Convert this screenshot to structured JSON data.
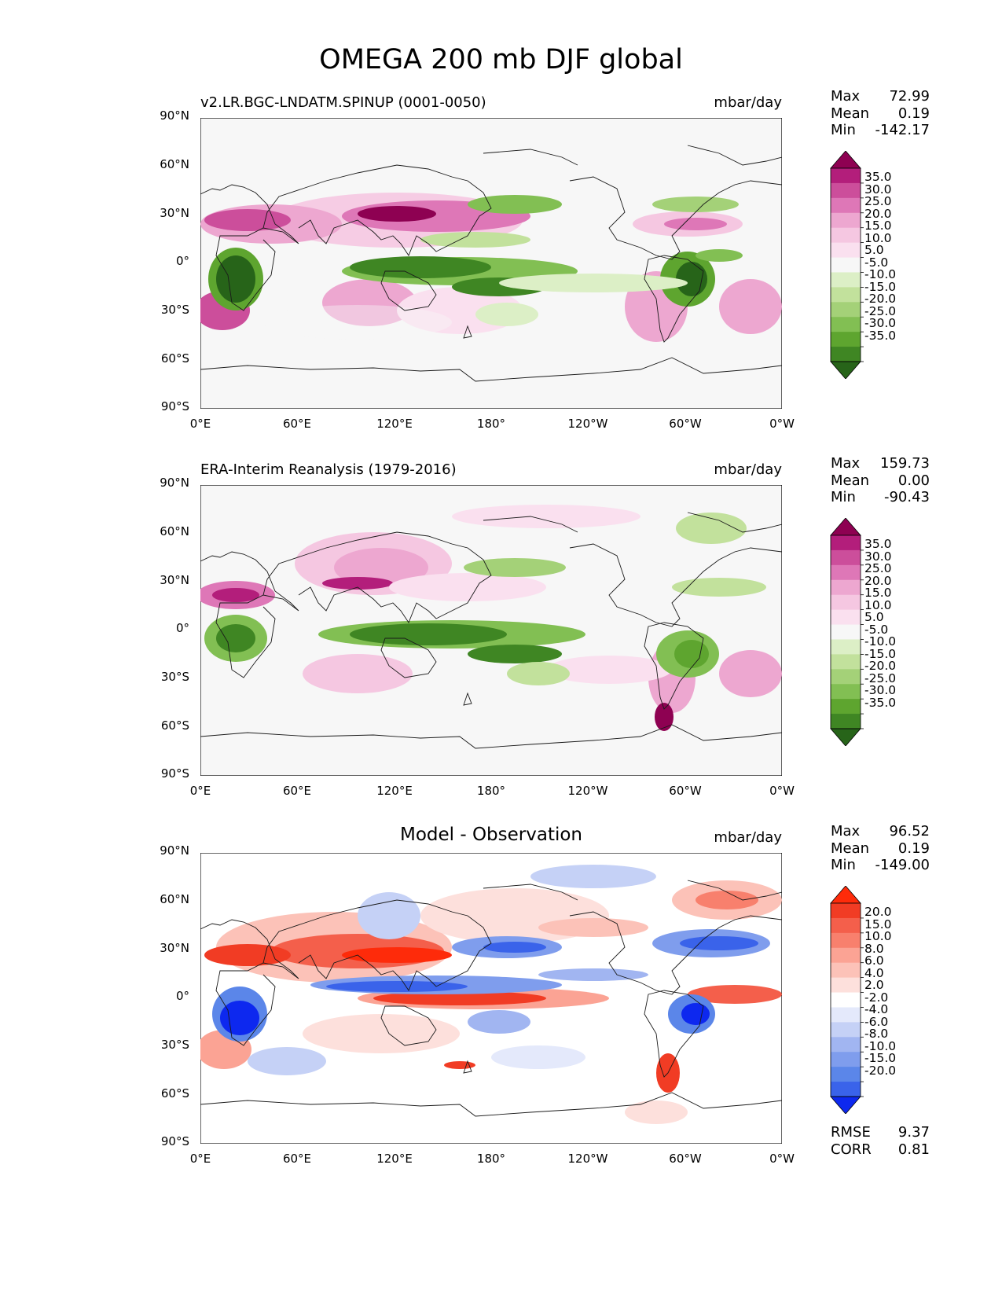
{
  "figure": {
    "title": "OMEGA 200 mb DJF global"
  },
  "axes": {
    "lat_ticks": [
      "90°N",
      "60°N",
      "30°N",
      "0°",
      "30°S",
      "60°S",
      "90°S"
    ],
    "lon_ticks": [
      "0°E",
      "60°E",
      "120°E",
      "180°",
      "120°W",
      "60°W",
      "0°W"
    ]
  },
  "colors": {
    "prgn": [
      "#276419",
      "#3f8623",
      "#5ea52f",
      "#82bf53",
      "#a4d178",
      "#c2e19c",
      "#dcefc6",
      "#f7f7f7",
      "#fae0ef",
      "#f5c7e1",
      "#eda7d0",
      "#de77b7",
      "#cc4e9b",
      "#b31e7b",
      "#8e0152"
    ],
    "diff": [
      "#0d28ef",
      "#3a63ea",
      "#5b86e9",
      "#7f9ded",
      "#a1b5f1",
      "#c5d1f6",
      "#e4e9fb",
      "#ffffff",
      "#fde0dc",
      "#fcc2b8",
      "#fba394",
      "#f8806d",
      "#f45f4b",
      "#f13c24",
      "#fe2b0a"
    ],
    "coast": "#1a1a1a"
  },
  "panels": [
    {
      "id": "test",
      "title": "v2.LR.BGC-LNDATM.SPINUP (0001-0050)",
      "units": "mbar/day",
      "stats": {
        "max_label": "Max",
        "max": "72.99",
        "mean_label": "Mean",
        "mean": "0.19",
        "min_label": "Min",
        "min": "-142.17"
      },
      "colorbar_labels": [
        "35.0",
        "30.0",
        "25.0",
        "20.0",
        "15.0",
        "10.0",
        "5.0",
        "-5.0",
        "-10.0",
        "-15.0",
        "-20.0",
        "-25.0",
        "-30.0",
        "-35.0"
      ]
    },
    {
      "id": "ref",
      "title": "ERA-Interim Reanalysis (1979-2016)",
      "units": "mbar/day",
      "stats": {
        "max_label": "Max",
        "max": "159.73",
        "mean_label": "Mean",
        "mean": "0.00",
        "min_label": "Min",
        "min": "-90.43"
      },
      "colorbar_labels": [
        "35.0",
        "30.0",
        "25.0",
        "20.0",
        "15.0",
        "10.0",
        "5.0",
        "-5.0",
        "-10.0",
        "-15.0",
        "-20.0",
        "-25.0",
        "-30.0",
        "-35.0"
      ]
    },
    {
      "id": "diff",
      "title": "Model - Observation",
      "units": "mbar/day",
      "stats": {
        "max_label": "Max",
        "max": "96.52",
        "mean_label": "Mean",
        "mean": "0.19",
        "min_label": "Min",
        "min": "-149.00"
      },
      "colorbar_labels": [
        "20.0",
        "15.0",
        "10.0",
        "8.0",
        "6.0",
        "4.0",
        "2.0",
        "-2.0",
        "-4.0",
        "-6.0",
        "-8.0",
        "-10.0",
        "-15.0",
        "-20.0"
      ],
      "metrics": {
        "rmse_label": "RMSE",
        "rmse": "9.37",
        "corr_label": "CORR",
        "corr": "0.81"
      }
    }
  ]
}
